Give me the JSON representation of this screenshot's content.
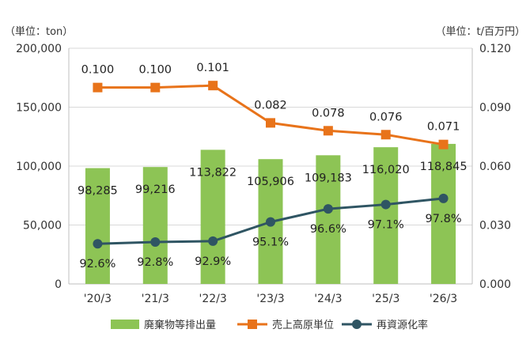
{
  "chart_data": {
    "type": "bar+line",
    "categories": [
      "'20/3",
      "'21/3",
      "'22/3",
      "'23/3",
      "'24/3",
      "'25/3",
      "'26/3"
    ],
    "left_unit": "（単位：ton）",
    "right_unit": "（単位：t/百万円）",
    "left_axis": {
      "min": 0,
      "max": 200000,
      "step": 50000,
      "tick_labels": [
        "0",
        "50,000",
        "100,000",
        "150,000",
        "200,000"
      ]
    },
    "right_axis": {
      "min": 0,
      "max": 0.12,
      "step": 0.03,
      "tick_labels": [
        "0.000",
        "0.030",
        "0.060",
        "0.090",
        "0.120"
      ]
    },
    "grid": true,
    "legend_position": "bottom",
    "series": [
      {
        "name": "廃棄物等排出量",
        "type": "bar",
        "axis": "left",
        "color": "#8dc455",
        "values": [
          98285,
          99216,
          113822,
          105906,
          109183,
          116020,
          118845
        ],
        "labels": [
          "98,285",
          "99,216",
          "113,822",
          "105,906",
          "109,183",
          "116,020",
          "118,845"
        ]
      },
      {
        "name": "売上高原単位",
        "type": "line",
        "axis": "right",
        "color": "#e8731a",
        "marker": "square",
        "values": [
          0.1,
          0.1,
          0.101,
          0.082,
          0.078,
          0.076,
          0.071
        ],
        "labels": [
          "0.100",
          "0.100",
          "0.101",
          "0.082",
          "0.078",
          "0.076",
          "0.071"
        ]
      },
      {
        "name": "再資源化率",
        "type": "line",
        "axis": "hidden",
        "color": "#2f5563",
        "marker": "circle",
        "values": [
          92.6,
          92.8,
          92.9,
          95.1,
          96.6,
          97.1,
          97.8
        ],
        "labels": [
          "92.6%",
          "92.8%",
          "92.9%",
          "95.1%",
          "96.6%",
          "97.1%",
          "97.8%"
        ]
      }
    ]
  }
}
